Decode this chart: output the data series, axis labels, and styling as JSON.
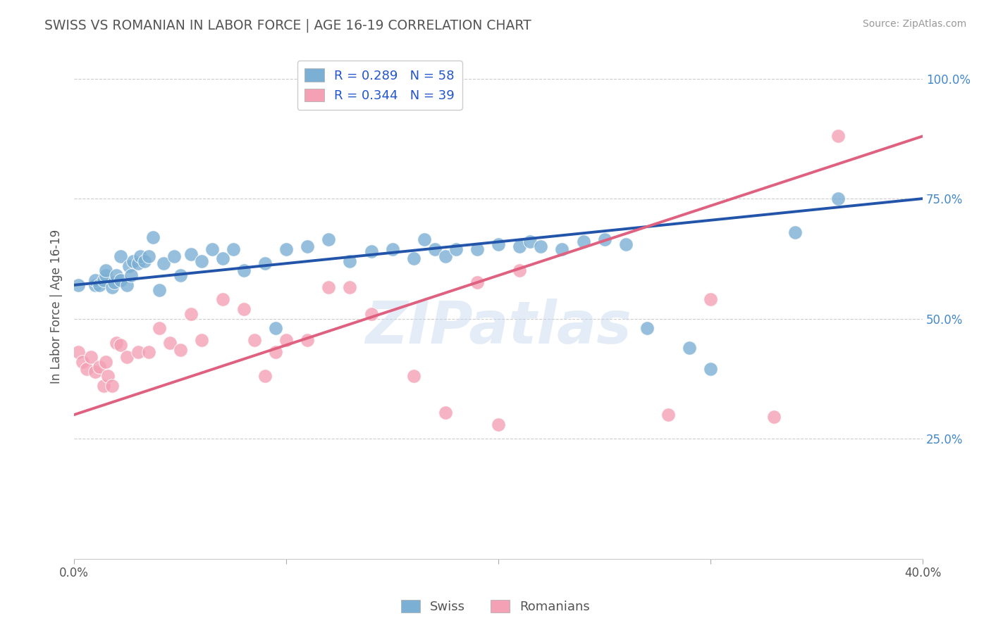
{
  "title": "SWISS VS ROMANIAN IN LABOR FORCE | AGE 16-19 CORRELATION CHART",
  "source": "Source: ZipAtlas.com",
  "ylabel": "In Labor Force | Age 16-19",
  "xlim": [
    0.0,
    0.4
  ],
  "ylim": [
    0.0,
    1.05
  ],
  "legend_swiss": "R = 0.289   N = 58",
  "legend_romanian": "R = 0.344   N = 39",
  "swiss_color": "#7bafd4",
  "romanian_color": "#f4a0b5",
  "swiss_line_color": "#2255aa",
  "romanian_line_color": "#e06080",
  "background_color": "#ffffff",
  "watermark": "ZIPatlas",
  "swiss_x": [
    0.002,
    0.01,
    0.01,
    0.012,
    0.014,
    0.015,
    0.015,
    0.018,
    0.019,
    0.02,
    0.022,
    0.022,
    0.025,
    0.026,
    0.027,
    0.028,
    0.03,
    0.031,
    0.033,
    0.035,
    0.037,
    0.04,
    0.042,
    0.047,
    0.05,
    0.055,
    0.06,
    0.065,
    0.07,
    0.075,
    0.08,
    0.09,
    0.095,
    0.1,
    0.11,
    0.12,
    0.13,
    0.14,
    0.15,
    0.16,
    0.165,
    0.17,
    0.175,
    0.18,
    0.19,
    0.2,
    0.21,
    0.215,
    0.22,
    0.23,
    0.24,
    0.25,
    0.26,
    0.27,
    0.29,
    0.3,
    0.34,
    0.36
  ],
  "swiss_y": [
    0.57,
    0.57,
    0.58,
    0.57,
    0.58,
    0.59,
    0.6,
    0.565,
    0.575,
    0.59,
    0.58,
    0.63,
    0.57,
    0.61,
    0.59,
    0.62,
    0.615,
    0.63,
    0.62,
    0.63,
    0.67,
    0.56,
    0.615,
    0.63,
    0.59,
    0.635,
    0.62,
    0.645,
    0.625,
    0.645,
    0.6,
    0.615,
    0.48,
    0.645,
    0.65,
    0.665,
    0.62,
    0.64,
    0.645,
    0.625,
    0.665,
    0.645,
    0.63,
    0.645,
    0.645,
    0.655,
    0.65,
    0.66,
    0.65,
    0.645,
    0.66,
    0.665,
    0.655,
    0.48,
    0.44,
    0.395,
    0.68,
    0.75
  ],
  "romanian_x": [
    0.002,
    0.004,
    0.006,
    0.008,
    0.01,
    0.012,
    0.014,
    0.015,
    0.016,
    0.018,
    0.02,
    0.022,
    0.025,
    0.03,
    0.035,
    0.04,
    0.045,
    0.05,
    0.055,
    0.06,
    0.07,
    0.08,
    0.085,
    0.09,
    0.095,
    0.1,
    0.11,
    0.12,
    0.13,
    0.14,
    0.16,
    0.175,
    0.19,
    0.2,
    0.21,
    0.28,
    0.3,
    0.33,
    0.36
  ],
  "romanian_y": [
    0.43,
    0.41,
    0.395,
    0.42,
    0.39,
    0.4,
    0.36,
    0.41,
    0.38,
    0.36,
    0.45,
    0.445,
    0.42,
    0.43,
    0.43,
    0.48,
    0.45,
    0.435,
    0.51,
    0.455,
    0.54,
    0.52,
    0.455,
    0.38,
    0.43,
    0.455,
    0.455,
    0.565,
    0.565,
    0.51,
    0.38,
    0.305,
    0.575,
    0.28,
    0.6,
    0.3,
    0.54,
    0.295,
    0.88
  ],
  "swiss_trend_x": [
    0.0,
    0.4
  ],
  "swiss_trend_y": [
    0.57,
    0.75
  ],
  "romanian_trend_x": [
    0.0,
    0.4
  ],
  "romanian_trend_y": [
    0.3,
    0.88
  ]
}
